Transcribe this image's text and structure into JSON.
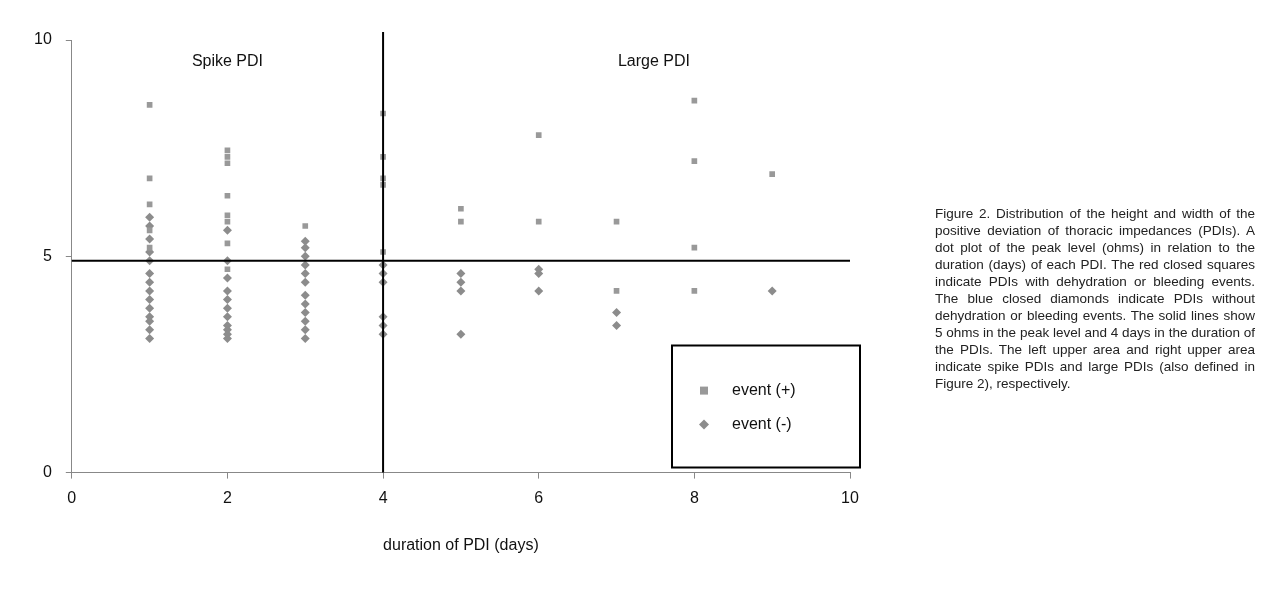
{
  "chart_data": {
    "type": "scatter",
    "xlabel": "duration of PDI (days)",
    "xlim": [
      0,
      10
    ],
    "xticks": [
      0,
      2,
      4,
      6,
      8,
      10
    ],
    "ylim": [
      0,
      10
    ],
    "yticks": [
      0,
      5,
      10
    ],
    "grid": false,
    "legend": "bottom right",
    "series": [
      {
        "name": "event (+)",
        "color": "#999999",
        "marker": "square",
        "x": [
          1,
          1,
          1,
          1,
          1,
          2,
          2,
          2,
          2,
          2,
          2,
          2,
          2,
          3,
          4,
          4,
          4,
          4,
          4,
          5,
          5,
          6,
          6,
          7,
          7,
          8,
          8,
          8,
          8,
          9
        ],
        "values": [
          8.5,
          6.8,
          6.2,
          5.6,
          5.2,
          7.45,
          7.3,
          7.15,
          6.4,
          5.95,
          5.8,
          5.3,
          4.7,
          5.7,
          8.3,
          7.3,
          6.8,
          6.65,
          5.1,
          6.1,
          5.8,
          7.8,
          5.8,
          5.8,
          4.2,
          8.6,
          7.2,
          5.2,
          4.2,
          6.9
        ]
      },
      {
        "name": "event (-)",
        "color": "#8c8c8c",
        "marker": "diamond",
        "x": [
          1,
          1,
          1,
          1,
          1,
          1,
          1,
          1,
          1,
          1,
          1,
          1,
          1,
          1,
          2,
          2,
          2,
          2,
          2,
          2,
          2,
          2,
          2,
          2,
          2,
          3,
          3,
          3,
          3,
          3,
          3,
          3,
          3,
          3,
          3,
          3,
          3,
          4,
          4,
          4,
          4,
          4,
          4,
          5,
          5,
          5,
          5,
          6,
          6,
          6,
          7,
          7,
          9
        ],
        "values": [
          5.9,
          5.7,
          5.4,
          5.1,
          4.9,
          4.6,
          4.4,
          4.2,
          4.0,
          3.8,
          3.6,
          3.5,
          3.3,
          3.1,
          5.6,
          4.9,
          4.5,
          4.2,
          4.0,
          3.8,
          3.6,
          3.4,
          3.3,
          3.2,
          3.1,
          5.35,
          5.2,
          5.0,
          4.8,
          4.6,
          4.4,
          4.1,
          3.9,
          3.7,
          3.5,
          3.3,
          3.1,
          4.8,
          4.6,
          4.4,
          3.6,
          3.4,
          3.2,
          4.6,
          4.4,
          4.2,
          3.2,
          4.7,
          4.6,
          4.2,
          3.7,
          3.4,
          4.2
        ]
      }
    ],
    "ref_lines": [
      {
        "axis": "x",
        "value": 4,
        "color": "#000000"
      },
      {
        "axis": "y",
        "value": 4.9,
        "color": "#000000"
      }
    ],
    "annotations": [
      "Spike PDI",
      "Large PDI",
      "Figure 2.  Distribution of the height and width of the positive deviation of thoracic impedances (PDIs). A dot plot of the peak level (ohms) in relation to the duration (days) of each PDI. The red closed squares indicate PDIs with dehydration or bleeding events. The blue closed diamonds indicate PDIs without dehydration or bleeding events. The solid lines show 5 ohms in the peak level and 4 days in the duration of the PDIs. The left upper area and right upper area indicate spike PDIs and large PDIs (also defined in Figure 2), respectively."
    ]
  }
}
